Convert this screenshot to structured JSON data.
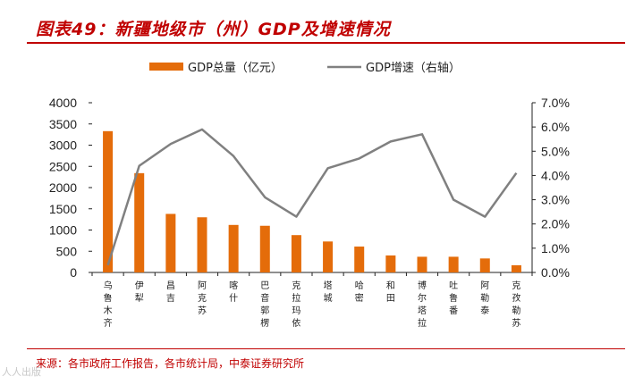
{
  "header": {
    "title": "图表49：新疆地级市（州）GDP及增速情况"
  },
  "footer": {
    "source": "来源：各市政府工作报告，各市统计局，中泰证券研究所",
    "watermark": "人人出版"
  },
  "chart_data": {
    "type": "bar",
    "categories": [
      "乌鲁木齐",
      "伊犁",
      "昌吉",
      "阿克苏",
      "喀什",
      "巴音郭楞",
      "克拉玛依",
      "塔城",
      "哈密",
      "和田",
      "博尔塔拉",
      "吐鲁番",
      "阿勒泰",
      "克孜勒苏"
    ],
    "series": [
      {
        "name": "GDP总量（亿元）",
        "type": "bar",
        "axis": "left",
        "color": "#e46c0a",
        "values": [
          3330,
          2340,
          1380,
          1300,
          1120,
          1100,
          880,
          730,
          610,
          400,
          370,
          370,
          330,
          170
        ]
      },
      {
        "name": "GDP增速（右轴）",
        "type": "line",
        "axis": "right",
        "color": "#808080",
        "values": [
          0.3,
          4.4,
          5.3,
          5.9,
          4.8,
          3.1,
          2.3,
          4.3,
          4.7,
          5.4,
          5.7,
          3.0,
          2.3,
          4.1
        ]
      }
    ],
    "yleft": {
      "ylim": [
        0,
        4000
      ],
      "ticks": [
        0,
        500,
        1000,
        1500,
        2000,
        2500,
        3000,
        3500,
        4000
      ]
    },
    "yright": {
      "ylim": [
        0,
        7
      ],
      "ticks": [
        "0.0%",
        "1.0%",
        "2.0%",
        "3.0%",
        "4.0%",
        "5.0%",
        "6.0%",
        "7.0%"
      ]
    },
    "legend": "top"
  }
}
